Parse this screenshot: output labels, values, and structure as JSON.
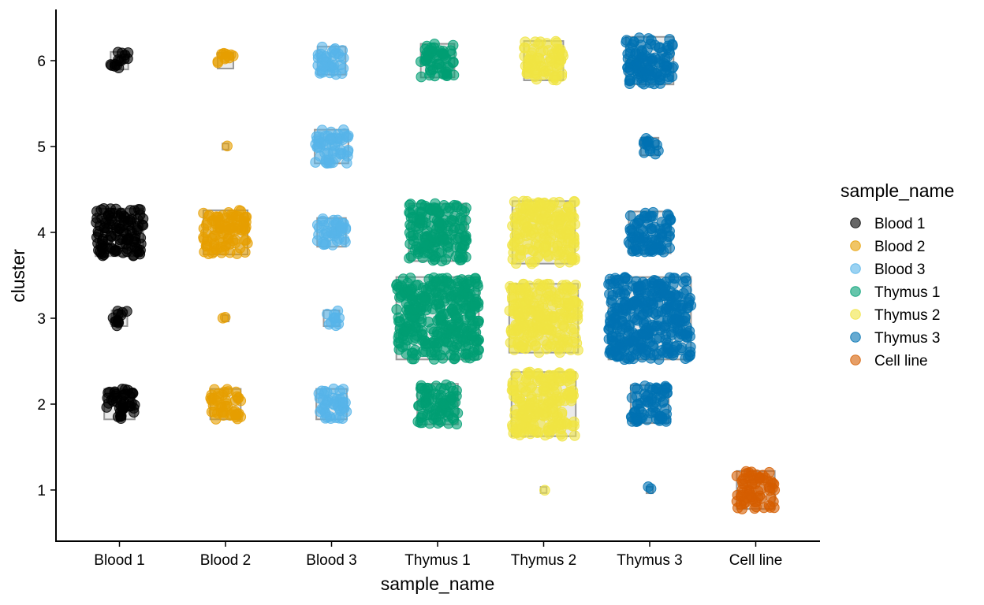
{
  "chart_data": {
    "type": "scatter",
    "subtype": "jittered count plot (boxes sized by cell count)",
    "title": "",
    "xlabel": "sample_name",
    "ylabel": "cluster",
    "x_categories": [
      "Blood 1",
      "Blood 2",
      "Blood 3",
      "Thymus 1",
      "Thymus 2",
      "Thymus 3",
      "Cell line"
    ],
    "y_ticks": [
      1,
      2,
      3,
      4,
      5,
      6
    ],
    "ylim": [
      0.4,
      6.6
    ],
    "grid": false,
    "legend": {
      "title": "sample_name",
      "position": "right",
      "entries": [
        "Blood 1",
        "Blood 2",
        "Blood 3",
        "Thymus 1",
        "Thymus 2",
        "Thymus 3",
        "Cell line"
      ]
    },
    "colors": {
      "Blood 1": "#000000",
      "Blood 2": "#E69F00",
      "Blood 3": "#56B4E9",
      "Thymus 1": "#009E73",
      "Thymus 2": "#F0E442",
      "Thymus 3": "#0072B2",
      "Cell line": "#D55E00"
    },
    "series": [
      {
        "name": "Blood 1",
        "x": "Blood 1",
        "counts": {
          "6": 15,
          "4": 110,
          "3": 12,
          "2": 45
        }
      },
      {
        "name": "Blood 2",
        "x": "Blood 2",
        "counts": {
          "6": 12,
          "5": 1,
          "4": 95,
          "3": 2,
          "2": 45
        }
      },
      {
        "name": "Blood 3",
        "x": "Blood 3",
        "counts": {
          "6": 38,
          "5": 55,
          "4": 40,
          "3": 12,
          "2": 45
        }
      },
      {
        "name": "Thymus 1",
        "x": "Thymus 1",
        "counts": {
          "6": 55,
          "4": 160,
          "3": 330,
          "2": 80
        }
      },
      {
        "name": "Thymus 2",
        "x": "Thymus 2",
        "counts": {
          "6": 75,
          "4": 190,
          "3": 230,
          "2": 200,
          "1": 1
        }
      },
      {
        "name": "Thymus 3",
        "x": "Thymus 3",
        "counts": {
          "6": 110,
          "5": 15,
          "4": 85,
          "3": 330,
          "2": 70,
          "1": 2
        }
      },
      {
        "name": "Cell line",
        "x": "Cell line",
        "counts": {
          "1": 70
        }
      }
    ]
  }
}
